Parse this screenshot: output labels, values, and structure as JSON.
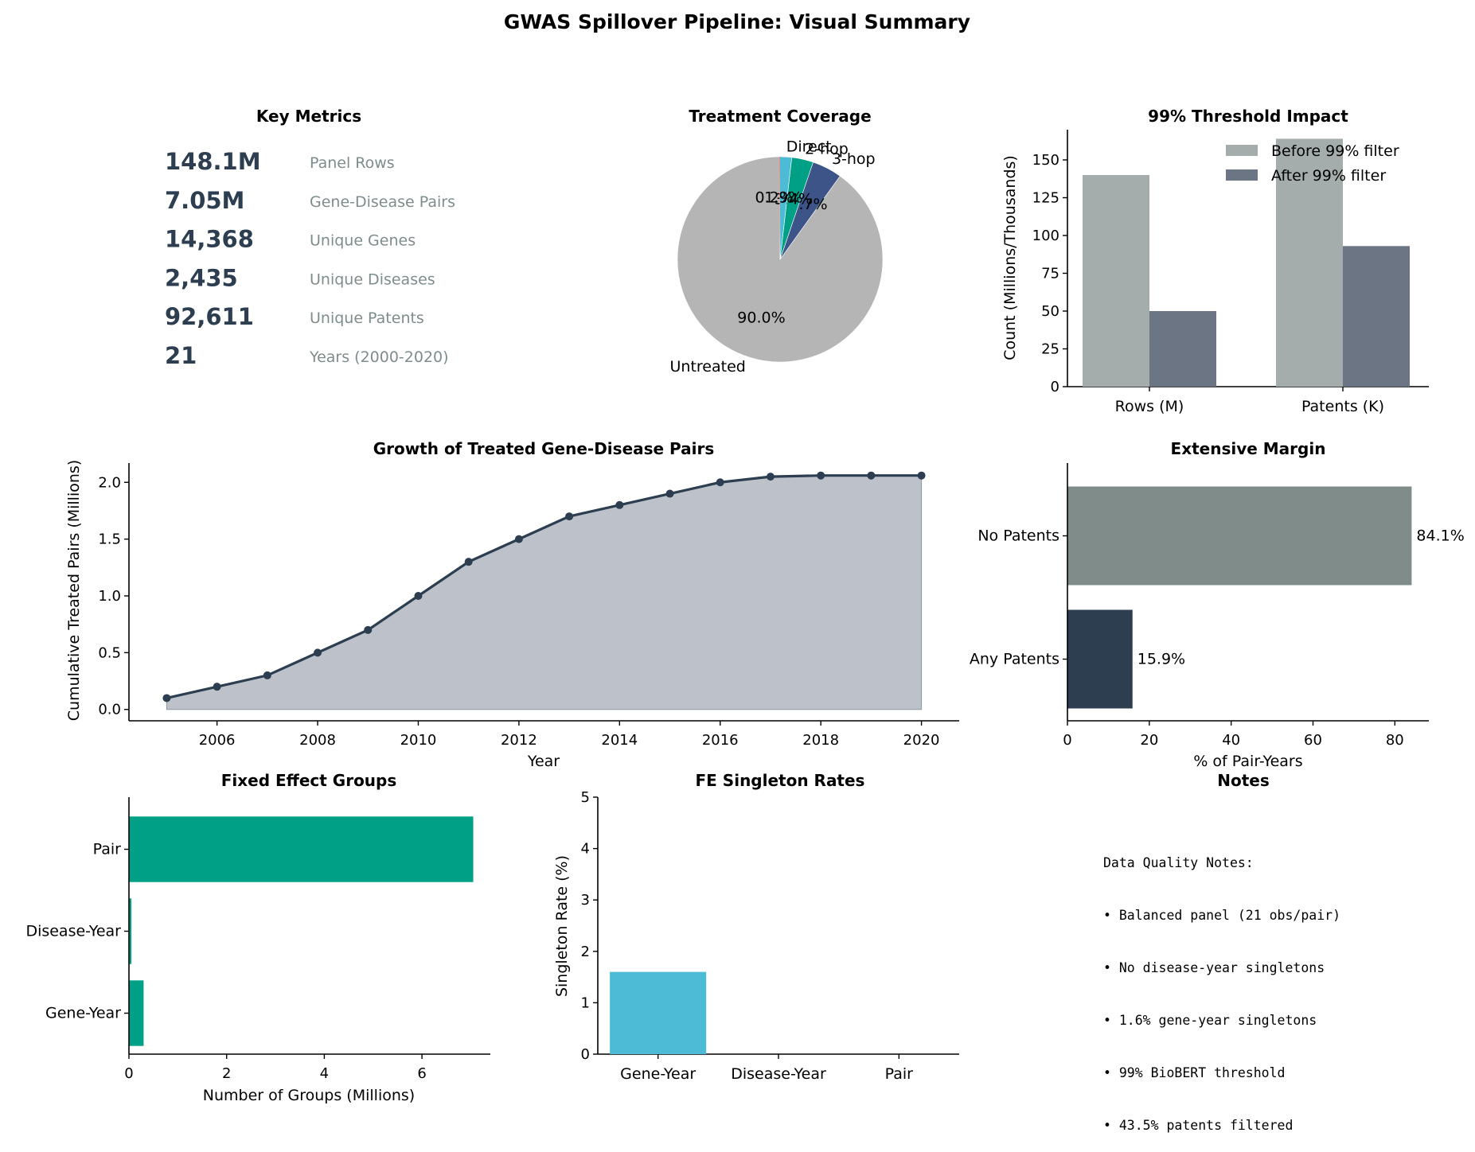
{
  "figure_title": "GWAS Spillover Pipeline: Visual Summary",
  "metrics": {
    "title": "Key Metrics",
    "items": [
      {
        "value": "148.1M",
        "label": "Panel Rows"
      },
      {
        "value": "7.05M",
        "label": "Gene-Disease Pairs"
      },
      {
        "value": "14,368",
        "label": "Unique Genes"
      },
      {
        "value": "2,435",
        "label": "Unique Diseases"
      },
      {
        "value": "92,611",
        "label": "Unique Patents"
      },
      {
        "value": "21",
        "label": "Years (2000-2020)"
      }
    ],
    "value_color": "#2c3e50",
    "label_color": "#7f8c8d"
  },
  "notes": {
    "title": "Notes",
    "lines": [
      "Data Quality Notes:",
      "• Balanced panel (21 obs/pair)",
      "• No disease-year singletons",
      "• 1.6% gene-year singletons",
      "• 99% BioBERT threshold",
      "• 43.5% patents filtered"
    ]
  },
  "chart_data": [
    {
      "id": "coverage",
      "type": "pie",
      "title": "Treatment Coverage",
      "labels": [
        "Untreated",
        "3-hop",
        "2-hop",
        "Direct"
      ],
      "values": [
        90.0,
        4.7,
        3.4,
        1.9
      ],
      "pct_labels": [
        "90.0%",
        "4.7%",
        "3.4%",
        "1.9%"
      ],
      "small_slice_labels": [
        "0.2%"
      ],
      "colors": [
        "#b5b5b5",
        "#3c5488",
        "#00a087",
        "#4dbbd5"
      ],
      "extra_sliver_color": "#e64b35"
    },
    {
      "id": "threshold",
      "type": "bar",
      "title": "99% Threshold Impact",
      "categories": [
        "Rows (M)",
        "Patents (K)"
      ],
      "series": [
        {
          "name": "Before 99% filter",
          "values": [
            140,
            164
          ],
          "color": "#a4acac"
        },
        {
          "name": "After 99% filter",
          "values": [
            50,
            93
          ],
          "color": "#6b7584"
        }
      ],
      "ylabel": "Count (Millions/Thousands)",
      "ylim": [
        0,
        170
      ],
      "yticks": [
        0,
        25,
        50,
        75,
        100,
        125,
        150
      ],
      "legend": "top-right"
    },
    {
      "id": "growth",
      "type": "area",
      "title": "Growth of Treated Gene-Disease Pairs",
      "x": [
        2005,
        2006,
        2007,
        2008,
        2009,
        2010,
        2011,
        2012,
        2013,
        2014,
        2015,
        2016,
        2017,
        2018,
        2019,
        2020
      ],
      "y": [
        0.1,
        0.2,
        0.3,
        0.5,
        0.7,
        1.0,
        1.3,
        1.5,
        1.7,
        1.8,
        1.9,
        2.0,
        2.05,
        2.06,
        2.06,
        2.06
      ],
      "xlabel": "Year",
      "ylabel": "Cumulative Treated Pairs (Millions)",
      "xlim": [
        2004.25,
        2020.75
      ],
      "ylim": [
        -0.1,
        2.17
      ],
      "xticks": [
        2006,
        2008,
        2010,
        2012,
        2014,
        2016,
        2018,
        2020
      ],
      "yticks": [
        0.0,
        0.5,
        1.0,
        1.5,
        2.0
      ],
      "line_color": "#2c3e50",
      "fill_color": "#bdc2ca"
    },
    {
      "id": "margin",
      "type": "barh",
      "title": "Extensive Margin",
      "categories": [
        "No Patents",
        "Any Patents"
      ],
      "values": [
        84.1,
        15.9
      ],
      "value_labels": [
        "84.1%",
        "15.9%"
      ],
      "colors": [
        "#7f8c8a",
        "#2c3e50"
      ],
      "xlabel": "% of Pair-Years",
      "xlim": [
        0,
        88.3
      ],
      "xticks": [
        0,
        20,
        40,
        60,
        80
      ]
    },
    {
      "id": "fe_groups",
      "type": "barh",
      "title": "Fixed Effect Groups",
      "categories": [
        "Pair",
        "Disease-Year",
        "Gene-Year"
      ],
      "values": [
        7.05,
        0.05,
        0.3
      ],
      "colors": [
        "#00a087",
        "#00a087",
        "#00a087"
      ],
      "xlabel": "Number of Groups (Millions)",
      "xlim": [
        0,
        7.4
      ],
      "xticks": [
        0,
        2,
        4,
        6
      ]
    },
    {
      "id": "singletons",
      "type": "bar",
      "title": "FE Singleton Rates",
      "categories": [
        "Gene-Year",
        "Disease-Year",
        "Pair"
      ],
      "values": [
        1.6,
        0,
        0
      ],
      "colors": [
        "#4dbbd5",
        "#4dbbd5",
        "#4dbbd5"
      ],
      "ylabel": "Singleton Rate (%)",
      "ylim": [
        0,
        5
      ],
      "yticks": [
        0,
        1,
        2,
        3,
        4,
        5
      ]
    }
  ]
}
